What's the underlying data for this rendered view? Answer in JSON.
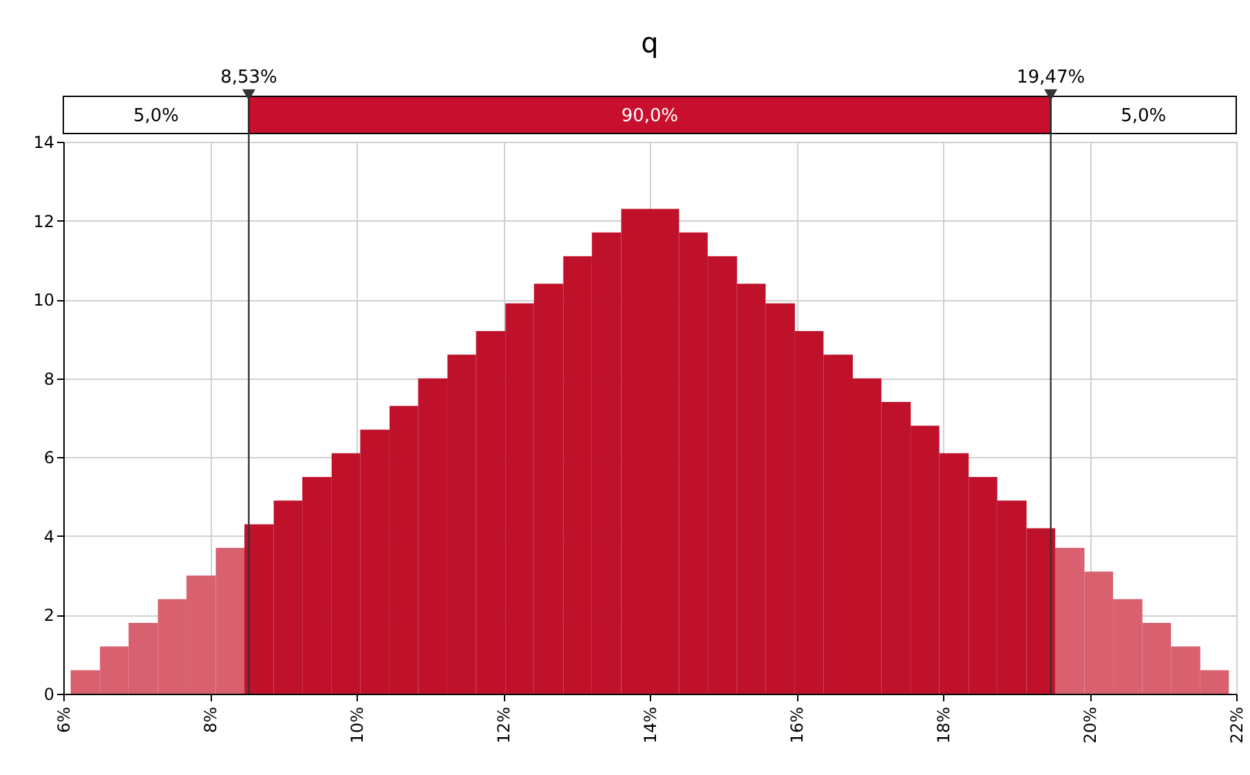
{
  "chart_data": {
    "type": "histogram",
    "title": "q",
    "bins": [
      6.1,
      6.5,
      6.89,
      7.29,
      7.68,
      8.08,
      8.47,
      8.87,
      9.26,
      9.66,
      10.05,
      10.45,
      10.84,
      11.24,
      11.63,
      12.03,
      12.42,
      12.82,
      13.21,
      13.61,
      14.0,
      14.4,
      14.79,
      15.19,
      15.58,
      15.98,
      16.37,
      16.77,
      17.16,
      17.56,
      17.95,
      18.35,
      18.74,
      19.14,
      19.53,
      19.93,
      20.32,
      20.72,
      21.11,
      21.51,
      21.9
    ],
    "values": [
      0.6,
      1.2,
      1.8,
      2.4,
      3.0,
      3.7,
      4.3,
      4.9,
      5.5,
      6.1,
      6.7,
      7.3,
      8.0,
      8.6,
      9.2,
      9.9,
      10.4,
      11.1,
      11.7,
      12.3,
      12.3,
      11.7,
      11.1,
      10.4,
      9.9,
      9.2,
      8.6,
      8.0,
      7.4,
      6.8,
      6.1,
      5.5,
      4.9,
      4.2,
      3.7,
      3.1,
      2.4,
      1.8,
      1.2,
      0.6
    ],
    "colors": [
      "#d9606e",
      "#d9606e",
      "#d9606e",
      "#d9606e",
      "#d9606e",
      "#d9606e",
      "#c0112b",
      "#c0112b",
      "#c0112b",
      "#c0112b",
      "#c0112b",
      "#c0112b",
      "#c0112b",
      "#c0112b",
      "#c0112b",
      "#c0112b",
      "#c0112b",
      "#c0112b",
      "#c0112b",
      "#c0112b",
      "#c0112b",
      "#c0112b",
      "#c0112b",
      "#c0112b",
      "#c0112b",
      "#c0112b",
      "#c0112b",
      "#c0112b",
      "#c0112b",
      "#c0112b",
      "#c0112b",
      "#c0112b",
      "#c0112b",
      "#c0112b",
      "#d9606e",
      "#d9606e",
      "#d9606e",
      "#d9606e",
      "#d9606e",
      "#d9606e"
    ],
    "xlim": [
      6,
      22
    ],
    "xticks": [
      {
        "value": 6,
        "label": "6%"
      },
      {
        "value": 8,
        "label": "8%"
      },
      {
        "value": 10,
        "label": "10%"
      },
      {
        "value": 12,
        "label": "12%"
      },
      {
        "value": 14,
        "label": "14%"
      },
      {
        "value": 16,
        "label": "16%"
      },
      {
        "value": 18,
        "label": "18%"
      },
      {
        "value": 20,
        "label": "20%"
      },
      {
        "value": 22,
        "label": "22%"
      }
    ],
    "ylim": [
      0,
      14
    ],
    "yticks": [
      0,
      2,
      4,
      6,
      8,
      10,
      12,
      14
    ],
    "grid": true,
    "ref_lines": [
      {
        "axis": "x",
        "value": 8.53,
        "label": "8,53%",
        "color": "#333333"
      },
      {
        "axis": "x",
        "value": 19.47,
        "label": "19,47%",
        "color": "#333333"
      }
    ],
    "annotations": [
      "5,0%",
      "90,0%",
      "5,0%"
    ]
  }
}
